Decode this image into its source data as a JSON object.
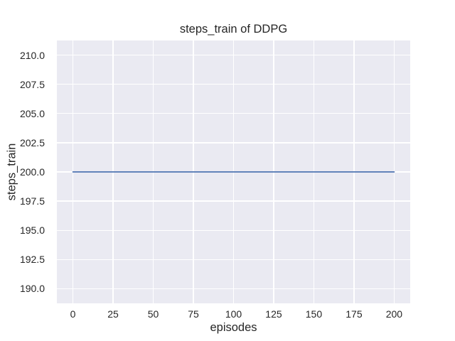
{
  "chart_data": {
    "type": "line",
    "title": "steps_train of DDPG",
    "xlabel": "episodes",
    "ylabel": "steps_train",
    "x_tick_labels": [
      "0",
      "25",
      "50",
      "75",
      "100",
      "125",
      "150",
      "175",
      "200"
    ],
    "x_tick_values": [
      0,
      25,
      50,
      75,
      100,
      125,
      150,
      175,
      200
    ],
    "y_tick_labels": [
      "190.0",
      "192.5",
      "195.0",
      "197.5",
      "200.0",
      "202.5",
      "205.0",
      "207.5",
      "210.0"
    ],
    "y_tick_values": [
      190.0,
      192.5,
      195.0,
      197.5,
      200.0,
      202.5,
      205.0,
      207.5,
      210.0
    ],
    "xlim": [
      -10,
      210
    ],
    "ylim": [
      188.75,
      211.25
    ],
    "grid": true,
    "legend": "none",
    "series": [
      {
        "name": "steps_train",
        "color": "#4C72B0",
        "x": [
          0,
          200
        ],
        "y": [
          200,
          200
        ]
      }
    ]
  },
  "style": {
    "plot_background": "#EAEAF2",
    "gridline_color": "#FFFFFF",
    "figure_background": "#FFFFFF",
    "text_color": "#262626",
    "line_color": "#4C72B0"
  }
}
